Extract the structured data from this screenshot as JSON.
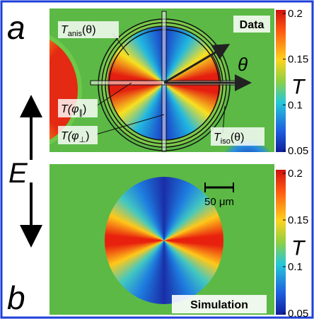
{
  "field": "E",
  "panels": [
    {
      "label": "a",
      "tag": "Data",
      "theta": "θ",
      "annotations": [
        {
          "main": "T",
          "sub": "anis",
          "tail": "(θ)"
        },
        {
          "main": "T(φ",
          "sub": "∥",
          "tail": ")"
        },
        {
          "main": "T(φ",
          "sub": "⊥",
          "tail": ")"
        },
        {
          "main": "T",
          "sub": "iso",
          "tail": "(θ)"
        }
      ],
      "colorbar": {
        "label": "T",
        "ticks": [
          0.2,
          0.15,
          0.1,
          0.05
        ]
      }
    },
    {
      "label": "b",
      "tag": "Simulation",
      "scale_bar": "50 μm",
      "colorbar": {
        "label": "T",
        "ticks": [
          0.2,
          0.15,
          0.1,
          0.05
        ]
      }
    }
  ]
}
